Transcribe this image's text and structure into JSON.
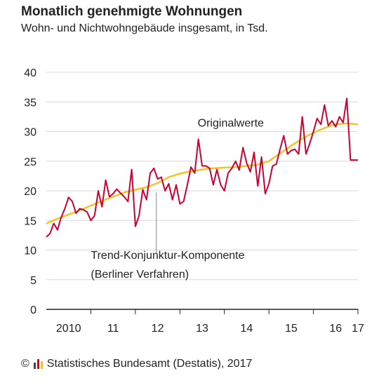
{
  "header": {
    "title": "Monatlich genehmigte Wohnungen",
    "subtitle": "Wohn- und Nichtwohngebäude insgesamt, in Tsd."
  },
  "footer": {
    "copyright_symbol": "©",
    "source": "Statistisches Bundesamt (Destatis), 2017",
    "logo_icon": "destatis-logo-icon"
  },
  "colors": {
    "original": "#cc0033",
    "trend": "#f5c227",
    "grid": "#d9d9d9",
    "axis": "#222222",
    "annotation_line": "#aaaaaa"
  },
  "chart_data": {
    "type": "line",
    "title": "Monatlich genehmigte Wohnungen",
    "subtitle": "Wohn- und Nichtwohngebäude insgesamt, in Tsd.",
    "ylim": [
      0,
      40
    ],
    "yticks": [
      0,
      5,
      10,
      15,
      20,
      25,
      30,
      35,
      40
    ],
    "xlim": [
      2010.0,
      2017.0
    ],
    "xtick_labels": [
      {
        "value": 2010.5,
        "label": "2010"
      },
      {
        "value": 2011.5,
        "label": "11"
      },
      {
        "value": 2012.5,
        "label": "12"
      },
      {
        "value": 2013.5,
        "label": "13"
      },
      {
        "value": 2014.5,
        "label": "14"
      },
      {
        "value": 2015.5,
        "label": "15"
      },
      {
        "value": 2016.5,
        "label": "16"
      },
      {
        "value": 2017.0,
        "label": "17"
      }
    ],
    "year_boundaries": [
      2011,
      2012,
      2013,
      2014,
      2015,
      2016,
      2017
    ],
    "grid": true,
    "annotations": [
      {
        "label": "Originalwerte",
        "x": 2013.4,
        "y": 30.8
      },
      {
        "label": "Trend-Konjunktur-Komponente",
        "x": 2011.0,
        "y": 8.5
      },
      {
        "label": "(Berliner Verfahren)",
        "x": 2011.0,
        "y": 5.3
      }
    ],
    "series": [
      {
        "name": "Originalwerte",
        "x": [
          2010.0,
          2010.083,
          2010.167,
          2010.25,
          2010.333,
          2010.417,
          2010.5,
          2010.583,
          2010.667,
          2010.75,
          2010.833,
          2010.917,
          2011.0,
          2011.083,
          2011.167,
          2011.25,
          2011.333,
          2011.417,
          2011.5,
          2011.583,
          2011.667,
          2011.75,
          2011.833,
          2011.917,
          2012.0,
          2012.083,
          2012.167,
          2012.25,
          2012.333,
          2012.417,
          2012.5,
          2012.583,
          2012.667,
          2012.75,
          2012.833,
          2012.917,
          2013.0,
          2013.083,
          2013.167,
          2013.25,
          2013.333,
          2013.417,
          2013.5,
          2013.583,
          2013.667,
          2013.75,
          2013.833,
          2013.917,
          2014.0,
          2014.083,
          2014.167,
          2014.25,
          2014.333,
          2014.417,
          2014.5,
          2014.583,
          2014.667,
          2014.75,
          2014.833,
          2014.917,
          2015.0,
          2015.083,
          2015.167,
          2015.25,
          2015.333,
          2015.417,
          2015.5,
          2015.583,
          2015.667,
          2015.75,
          2015.833,
          2015.917,
          2016.0,
          2016.083,
          2016.167,
          2016.25,
          2016.333,
          2016.417,
          2016.5,
          2016.583,
          2016.667,
          2016.75,
          2016.833,
          2016.917,
          2017.0
        ],
        "values": [
          12.2,
          12.8,
          14.5,
          13.4,
          15.5,
          17.0,
          18.9,
          18.2,
          16.2,
          17.0,
          16.8,
          16.4,
          15.0,
          15.8,
          20.0,
          17.3,
          21.8,
          19.0,
          19.5,
          20.3,
          19.6,
          19.0,
          18.2,
          23.6,
          14.0,
          15.8,
          20.2,
          18.5,
          23.0,
          23.8,
          22.0,
          22.3,
          20.0,
          21.2,
          18.5,
          21.0,
          17.8,
          18.2,
          21.0,
          24.0,
          23.0,
          28.7,
          24.2,
          24.2,
          23.8,
          21.0,
          23.6,
          21.0,
          20.0,
          23.0,
          23.8,
          25.0,
          23.5,
          27.3,
          24.7,
          23.2,
          26.5,
          20.8,
          25.7,
          19.5,
          21.2,
          24.2,
          24.5,
          27.0,
          29.3,
          26.2,
          26.8,
          27.0,
          26.2,
          32.5,
          26.2,
          28.0,
          30.0,
          32.2,
          31.2,
          34.5,
          31.0,
          31.8,
          30.8,
          32.5,
          31.5,
          35.6,
          25.2,
          25.2,
          25.2
        ]
      },
      {
        "name": "Trend-Konjunktur-Komponente",
        "x": [
          2010.0,
          2010.25,
          2010.5,
          2010.75,
          2011.0,
          2011.25,
          2011.5,
          2011.75,
          2012.0,
          2012.25,
          2012.5,
          2012.75,
          2013.0,
          2013.25,
          2013.5,
          2013.75,
          2014.0,
          2014.25,
          2014.5,
          2014.75,
          2015.0,
          2015.25,
          2015.5,
          2015.75,
          2016.0,
          2016.25,
          2016.5,
          2016.75,
          2017.0
        ],
        "values": [
          14.5,
          15.3,
          16.0,
          16.7,
          17.5,
          18.3,
          19.0,
          19.7,
          20.2,
          20.6,
          21.3,
          22.3,
          22.9,
          23.3,
          23.6,
          23.8,
          23.9,
          24.0,
          24.2,
          24.4,
          25.0,
          26.3,
          27.6,
          28.8,
          29.8,
          30.6,
          31.2,
          31.4,
          31.2
        ]
      }
    ]
  }
}
